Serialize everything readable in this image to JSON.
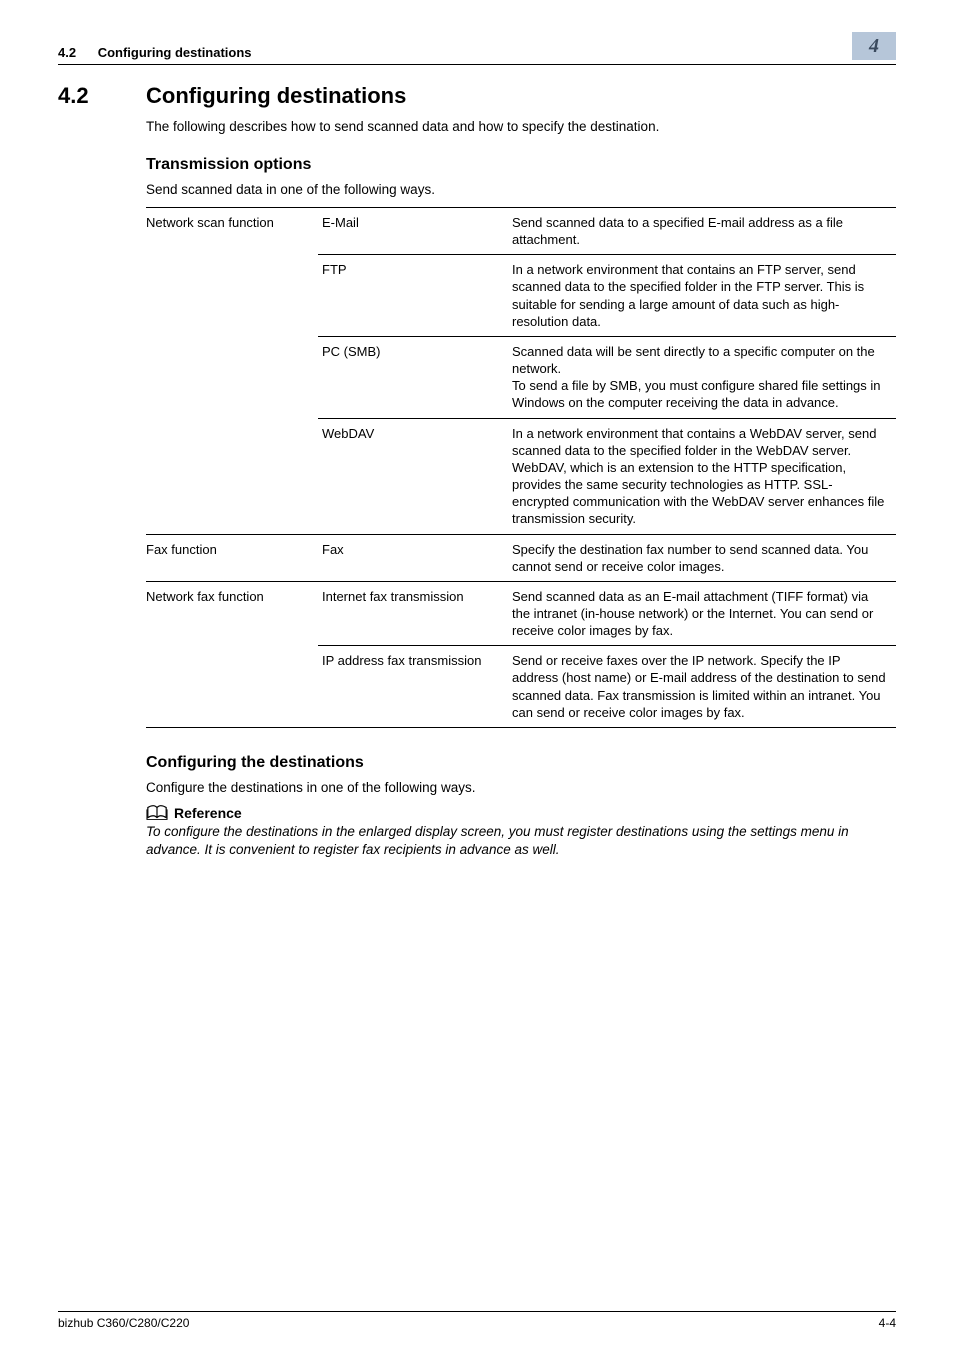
{
  "colors": {
    "chapter_tab_bg": "#b6c6d9",
    "chapter_tab_text": "#3a4a5e",
    "rule": "#000000",
    "text": "#000000",
    "background": "#ffffff"
  },
  "running_head": {
    "section_number": "4.2",
    "section_title": "Configuring destinations",
    "chapter_number": "4"
  },
  "section": {
    "number": "4.2",
    "title": "Configuring destinations",
    "intro": "The following describes how to send scanned data and how to specify the destination."
  },
  "transmission": {
    "heading": "Transmission options",
    "intro": "Send scanned data in one of the following ways.",
    "table": [
      {
        "group": "Network scan function",
        "rows": [
          {
            "method": "E-Mail",
            "desc": "Send scanned data to a specified E-mail address as a file attachment."
          },
          {
            "method": "FTP",
            "desc": "In a network environment that contains an FTP server, send scanned data to the specified folder in the FTP server. This is suitable for sending a large amount of data such as high-resolution data."
          },
          {
            "method": "PC (SMB)",
            "desc": "Scanned data will be sent directly to a specific computer on the network.\nTo send a file by SMB, you must configure shared file settings in Windows on the computer receiving the data in advance."
          },
          {
            "method": "WebDAV",
            "desc": "In a network environment that contains a WebDAV server, send scanned data to the specified folder in the WebDAV server.\nWebDAV, which is an extension to the HTTP specification, provides the same security technologies as HTTP. SSL-encrypted communication with the WebDAV server enhances file transmission security."
          }
        ]
      },
      {
        "group": "Fax function",
        "rows": [
          {
            "method": "Fax",
            "desc": "Specify the destination fax number to send scanned data. You cannot send or receive color images."
          }
        ]
      },
      {
        "group": "Network fax function",
        "rows": [
          {
            "method": "Internet fax transmission",
            "desc": "Send scanned data as an E-mail attachment (TIFF format) via the intranet (in-house network) or the Internet. You can send or receive color images by fax."
          },
          {
            "method": "IP address fax transmission",
            "desc": "Send or receive faxes over the IP network. Specify the IP address (host name) or E-mail address of the destination to send scanned data. Fax transmission is limited within an intranet. You can send or receive color images by fax."
          }
        ]
      }
    ]
  },
  "configuring": {
    "heading": "Configuring the destinations",
    "intro": "Configure the destinations in one of the following ways.",
    "reference_label": "Reference",
    "reference_text": "To configure the destinations in the enlarged display screen, you must register destinations using the settings menu in advance. It is convenient to register fax recipients in advance as well."
  },
  "footer": {
    "left": "bizhub C360/C280/C220",
    "right": "4-4"
  }
}
